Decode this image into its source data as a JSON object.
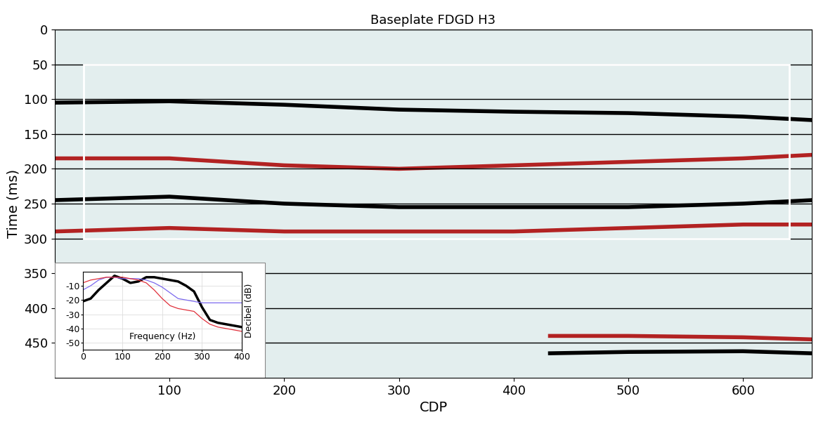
{
  "chart_data": [
    {
      "type": "line",
      "title": "Baseplate FDGD H3",
      "x_label": "CDP",
      "y_label": "Time (ms)",
      "xlim": [
        0,
        660
      ],
      "ylim": [
        500,
        0
      ],
      "xticks": [
        100,
        200,
        300,
        400,
        500,
        600
      ],
      "yticks": [
        0,
        50,
        100,
        150,
        200,
        250,
        300,
        350,
        400,
        450
      ],
      "grid": true,
      "window": {
        "x": [
          25,
          640
        ],
        "y": [
          50,
          300
        ]
      },
      "series": [
        {
          "color": "#000000",
          "x": [
            0,
            100,
            200,
            300,
            400,
            500,
            600,
            660
          ],
          "values": [
            105,
            103,
            108,
            115,
            118,
            120,
            125,
            130
          ]
        },
        {
          "color": "#b22222",
          "x": [
            0,
            100,
            200,
            300,
            400,
            500,
            600,
            660
          ],
          "values": [
            185,
            185,
            195,
            200,
            195,
            190,
            185,
            180
          ]
        },
        {
          "color": "#000000",
          "x": [
            0,
            100,
            200,
            300,
            400,
            500,
            600,
            660
          ],
          "values": [
            245,
            240,
            250,
            255,
            255,
            255,
            250,
            245
          ]
        },
        {
          "color": "#b22222",
          "x": [
            0,
            100,
            200,
            300,
            400,
            500,
            600,
            660
          ],
          "values": [
            290,
            285,
            290,
            290,
            290,
            285,
            280,
            280
          ]
        },
        {
          "color": "#b22222",
          "x": [
            430,
            500,
            600,
            660
          ],
          "values": [
            440,
            440,
            442,
            445
          ]
        },
        {
          "color": "#000000",
          "x": [
            430,
            500,
            600,
            660
          ],
          "values": [
            465,
            463,
            462,
            465
          ]
        }
      ]
    },
    {
      "type": "line",
      "x_label": "Frequency (Hz)",
      "y_label": "Decibel (dB)",
      "xlim": [
        0,
        400
      ],
      "ylim": [
        -55,
        0
      ],
      "xticks": [
        0,
        100,
        200,
        300,
        400
      ],
      "yticks": [
        -50,
        -40,
        -30,
        -20,
        -10
      ],
      "grid": true,
      "x": [
        0,
        20,
        40,
        60,
        80,
        100,
        120,
        140,
        160,
        180,
        200,
        220,
        240,
        260,
        280,
        300,
        320,
        340,
        360,
        380,
        400
      ],
      "series": [
        {
          "color": "#000000",
          "values": [
            -21,
            -19,
            -13,
            -8,
            -3,
            -5,
            -8,
            -7,
            -4,
            -4,
            -5,
            -6,
            -7,
            -10,
            -14,
            -25,
            -34,
            -36,
            -37,
            -38,
            -39
          ]
        },
        {
          "color": "#7b68ee",
          "values": [
            -13,
            -10,
            -6,
            -4,
            -4,
            -5,
            -5,
            -5,
            -6,
            -8,
            -11,
            -15,
            -19,
            -20,
            -21,
            -22,
            -22,
            -22,
            -22,
            -22,
            -22
          ]
        },
        {
          "color": "#e0303b",
          "values": [
            -8,
            -6,
            -5,
            -4,
            -4,
            -4,
            -5,
            -6,
            -8,
            -13,
            -19,
            -24,
            -26,
            -27,
            -28,
            -33,
            -37,
            -39,
            -40,
            -41,
            -42
          ]
        }
      ]
    }
  ]
}
